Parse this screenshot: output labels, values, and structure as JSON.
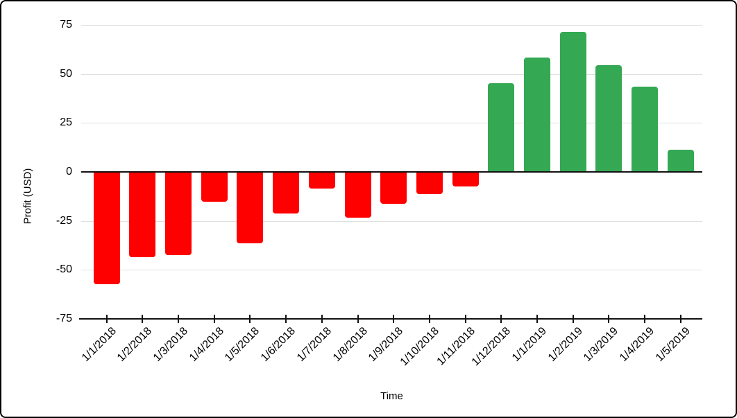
{
  "window": {
    "background": "#ffffff",
    "frame_border_color": "#000000"
  },
  "chart_data": {
    "type": "bar",
    "title": "",
    "xlabel": "Time",
    "ylabel": "Profit (USD)",
    "categories": [
      "1/1/2018",
      "1/2/2018",
      "1/3/2018",
      "1/4/2018",
      "1/5/2018",
      "1/6/2018",
      "1/7/2018",
      "1/8/2018",
      "1/9/2018",
      "1/10/2018",
      "1/11/2018",
      "1/12/2018",
      "1/1/2019",
      "1/2/2019",
      "1/3/2019",
      "1/4/2019",
      "1/5/2019"
    ],
    "values": [
      -57,
      -43,
      -42,
      -15,
      -36,
      -21,
      -8,
      -23,
      -16,
      -11,
      -7,
      45,
      58,
      71,
      54,
      43,
      11
    ],
    "yticks": [
      75,
      50,
      25,
      0,
      -25,
      -50,
      -75
    ],
    "ylim": [
      -75,
      75
    ],
    "grid": true,
    "legend": "none",
    "colors": {
      "positive_bar": "#34a853",
      "negative_bar": "#ff0000",
      "gridline": "#e0e0e0",
      "axis_line": "#111111",
      "text": "#000000"
    }
  }
}
